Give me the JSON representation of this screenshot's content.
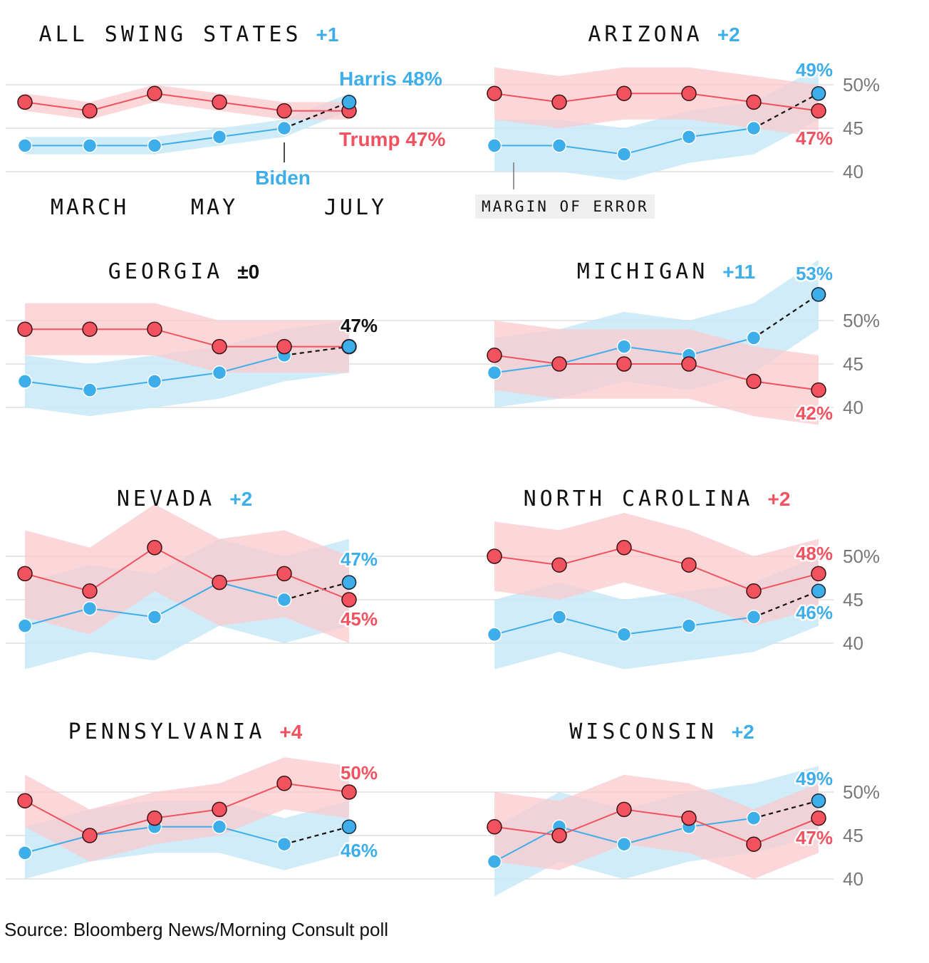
{
  "colors": {
    "dem": "#3daee9",
    "dem_band": "#c9e9f8",
    "rep": "#f0535f",
    "rep_band": "#f9c9cd",
    "neutral": "#111111",
    "tick": "#777777",
    "grid": "#dddddd"
  },
  "labels": {
    "biden": "Biden",
    "margin_of_error": "MARGIN OF ERROR",
    "months": [
      "MARCH",
      "MAY",
      "JULY"
    ]
  },
  "source": "Source: Bloomberg News/Morning Consult poll",
  "chart_data": [
    {
      "type": "line",
      "title": "ALL SWING STATES",
      "lead": "+1",
      "lead_party": "dem",
      "ylim": [
        38,
        52
      ],
      "yticks": [
        40,
        45,
        50
      ],
      "show_ytick_labels": false,
      "x": [
        1,
        2,
        3,
        4,
        5,
        6
      ],
      "series": [
        {
          "name": "Trump",
          "party": "rep",
          "values": [
            48,
            47,
            49,
            48,
            47,
            47
          ],
          "moe": 1
        },
        {
          "name": "Biden/Harris",
          "party": "dem",
          "values": [
            43,
            43,
            43,
            44,
            45,
            48
          ],
          "moe": 1
        }
      ],
      "end_labels": [
        {
          "text": "Harris 48%",
          "party": "dem"
        },
        {
          "text": "Trump 47%",
          "party": "rep"
        }
      ]
    },
    {
      "type": "line",
      "title": "ARIZONA",
      "lead": "+2",
      "lead_party": "dem",
      "ylim": [
        38,
        52
      ],
      "yticks": [
        40,
        45,
        50
      ],
      "ytick_labels": [
        "40",
        "45",
        "50%"
      ],
      "show_ytick_labels": true,
      "x": [
        1,
        2,
        3,
        4,
        5,
        6
      ],
      "series": [
        {
          "name": "Trump",
          "party": "rep",
          "values": [
            49,
            48,
            49,
            49,
            48,
            47
          ],
          "moe": 3
        },
        {
          "name": "Biden/Harris",
          "party": "dem",
          "values": [
            43,
            43,
            42,
            44,
            45,
            49
          ],
          "moe": 3
        }
      ],
      "end_labels": [
        {
          "text": "49%",
          "party": "dem"
        },
        {
          "text": "47%",
          "party": "rep"
        }
      ]
    },
    {
      "type": "line",
      "title": "GEORGIA",
      "lead": "±0",
      "lead_party": "neutral",
      "ylim": [
        38,
        52
      ],
      "yticks": [
        40,
        45,
        50
      ],
      "show_ytick_labels": false,
      "x": [
        1,
        2,
        3,
        4,
        5,
        6
      ],
      "series": [
        {
          "name": "Trump",
          "party": "rep",
          "values": [
            49,
            49,
            49,
            47,
            47,
            47
          ],
          "moe": 3
        },
        {
          "name": "Biden/Harris",
          "party": "dem",
          "values": [
            43,
            42,
            43,
            44,
            46,
            47
          ],
          "moe": 3
        }
      ],
      "end_labels": [
        {
          "text": "47%",
          "party": "neutral"
        }
      ]
    },
    {
      "type": "line",
      "title": "MICHIGAN",
      "lead": "+11",
      "lead_party": "dem",
      "ylim": [
        38,
        52
      ],
      "yticks": [
        40,
        45,
        50
      ],
      "ytick_labels": [
        "40",
        "45",
        "50%"
      ],
      "show_ytick_labels": true,
      "x": [
        1,
        2,
        3,
        4,
        5,
        6
      ],
      "series": [
        {
          "name": "Trump",
          "party": "rep",
          "values": [
            46,
            45,
            45,
            45,
            43,
            42
          ],
          "moe": 4
        },
        {
          "name": "Biden/Harris",
          "party": "dem",
          "values": [
            44,
            45,
            47,
            46,
            48,
            53
          ],
          "moe": 4
        }
      ],
      "end_labels": [
        {
          "text": "53%",
          "party": "dem"
        },
        {
          "text": "42%",
          "party": "rep"
        }
      ]
    },
    {
      "type": "line",
      "title": "NEVADA",
      "lead": "+2",
      "lead_party": "dem",
      "ylim": [
        38,
        52
      ],
      "yticks": [
        40,
        45,
        50
      ],
      "show_ytick_labels": false,
      "x": [
        1,
        2,
        3,
        4,
        5,
        6
      ],
      "series": [
        {
          "name": "Trump",
          "party": "rep",
          "values": [
            48,
            46,
            51,
            47,
            48,
            45
          ],
          "moe": 5
        },
        {
          "name": "Biden/Harris",
          "party": "dem",
          "values": [
            42,
            44,
            43,
            47,
            45,
            47
          ],
          "moe": 5
        }
      ],
      "end_labels": [
        {
          "text": "47%",
          "party": "dem"
        },
        {
          "text": "45%",
          "party": "rep"
        }
      ]
    },
    {
      "type": "line",
      "title": "NORTH CAROLINA",
      "lead": "+2",
      "lead_party": "rep",
      "ylim": [
        38,
        52
      ],
      "yticks": [
        40,
        45,
        50
      ],
      "ytick_labels": [
        "40",
        "45",
        "50%"
      ],
      "show_ytick_labels": true,
      "x": [
        1,
        2,
        3,
        4,
        5,
        6
      ],
      "series": [
        {
          "name": "Trump",
          "party": "rep",
          "values": [
            50,
            49,
            51,
            49,
            46,
            48
          ],
          "moe": 4
        },
        {
          "name": "Biden/Harris",
          "party": "dem",
          "values": [
            41,
            43,
            41,
            42,
            43,
            46
          ],
          "moe": 4
        }
      ],
      "end_labels": [
        {
          "text": "48%",
          "party": "rep"
        },
        {
          "text": "46%",
          "party": "dem"
        }
      ]
    },
    {
      "type": "line",
      "title": "PENNSYLVANIA",
      "lead": "+4",
      "lead_party": "rep",
      "ylim": [
        38,
        52
      ],
      "yticks": [
        40,
        45,
        50
      ],
      "show_ytick_labels": false,
      "x": [
        1,
        2,
        3,
        4,
        5,
        6
      ],
      "series": [
        {
          "name": "Trump",
          "party": "rep",
          "values": [
            49,
            45,
            47,
            48,
            51,
            50
          ],
          "moe": 3
        },
        {
          "name": "Biden/Harris",
          "party": "dem",
          "values": [
            43,
            45,
            46,
            46,
            44,
            46
          ],
          "moe": 3
        }
      ],
      "end_labels": [
        {
          "text": "50%",
          "party": "rep"
        },
        {
          "text": "46%",
          "party": "dem"
        }
      ]
    },
    {
      "type": "line",
      "title": "WISCONSIN",
      "lead": "+2",
      "lead_party": "dem",
      "ylim": [
        38,
        52
      ],
      "yticks": [
        40,
        45,
        50
      ],
      "ytick_labels": [
        "40",
        "45",
        "50%"
      ],
      "show_ytick_labels": true,
      "x": [
        1,
        2,
        3,
        4,
        5,
        6
      ],
      "series": [
        {
          "name": "Trump",
          "party": "rep",
          "values": [
            46,
            45,
            48,
            47,
            44,
            47
          ],
          "moe": 4
        },
        {
          "name": "Biden/Harris",
          "party": "dem",
          "values": [
            42,
            46,
            44,
            46,
            47,
            49
          ],
          "moe": 4
        }
      ],
      "end_labels": [
        {
          "text": "49%",
          "party": "dem"
        },
        {
          "text": "47%",
          "party": "rep"
        }
      ]
    }
  ]
}
